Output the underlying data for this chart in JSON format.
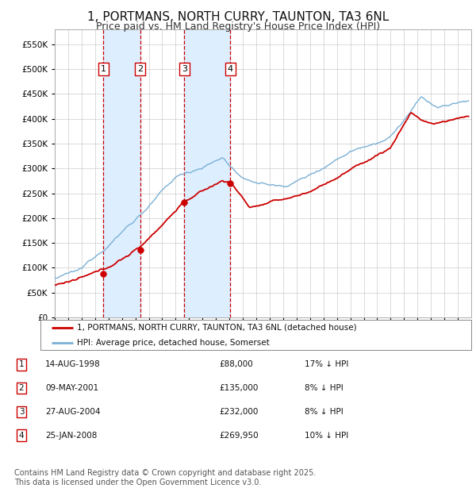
{
  "title": "1, PORTMANS, NORTH CURRY, TAUNTON, TA3 6NL",
  "subtitle": "Price paid vs. HM Land Registry's House Price Index (HPI)",
  "title_fontsize": 11,
  "subtitle_fontsize": 9,
  "ylim": [
    0,
    580000
  ],
  "yticks": [
    0,
    50000,
    100000,
    150000,
    200000,
    250000,
    300000,
    350000,
    400000,
    450000,
    500000,
    550000
  ],
  "xlim_start": 1995,
  "xlim_end": 2026,
  "background_color": "#ffffff",
  "grid_color": "#cccccc",
  "hpi_line_color": "#7ab0d4",
  "price_line_color": "#cc0000",
  "vline_color": "#cc0000",
  "vspan_color": "#ddeeff",
  "legend_line1": "1, PORTMANS, NORTH CURRY, TAUNTON, TA3 6NL (detached house)",
  "legend_line2": "HPI: Average price, detached house, Somerset",
  "sales": [
    {
      "label": "1",
      "date_num": 1998.617,
      "price": 88000,
      "pct": "17%",
      "date_str": "14-AUG-1998"
    },
    {
      "label": "2",
      "date_num": 2001.355,
      "price": 135000,
      "pct": "8%",
      "date_str": "09-MAY-2001"
    },
    {
      "label": "3",
      "date_num": 2004.653,
      "price": 232000,
      "pct": "8%",
      "date_str": "27-AUG-2004"
    },
    {
      "label": "4",
      "date_num": 2008.069,
      "price": 269950,
      "pct": "10%",
      "date_str": "25-JAN-2008"
    }
  ],
  "footnote": "Contains HM Land Registry data © Crown copyright and database right 2025.\nThis data is licensed under the Open Government Licence v3.0.",
  "footnote_fontsize": 7
}
